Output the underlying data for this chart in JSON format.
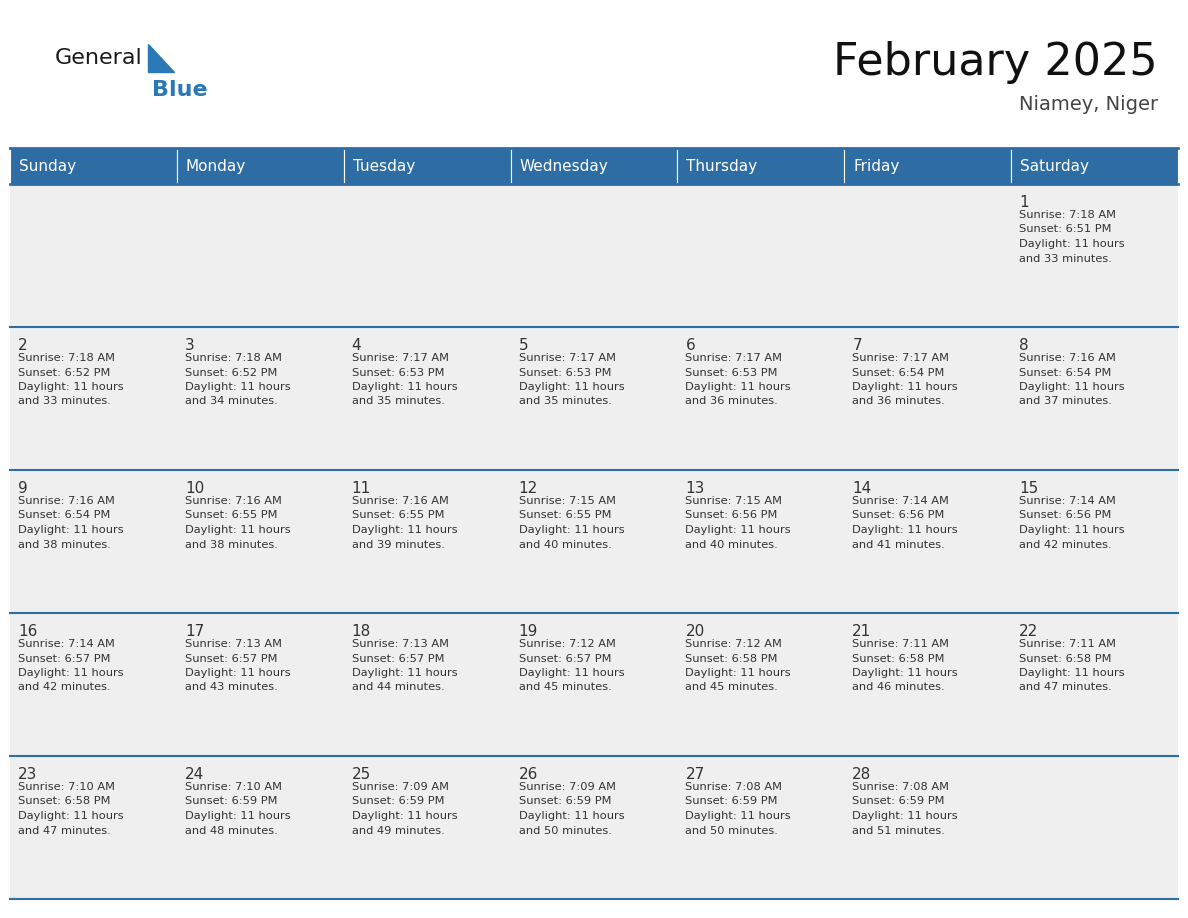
{
  "title": "February 2025",
  "subtitle": "Niamey, Niger",
  "header_color": "#2E6DA4",
  "header_text_color": "#FFFFFF",
  "cell_bg": "#EFEFEF",
  "text_color": "#333333",
  "days_of_week": [
    "Sunday",
    "Monday",
    "Tuesday",
    "Wednesday",
    "Thursday",
    "Friday",
    "Saturday"
  ],
  "calendar_data": [
    [
      null,
      null,
      null,
      null,
      null,
      null,
      1
    ],
    [
      2,
      3,
      4,
      5,
      6,
      7,
      8
    ],
    [
      9,
      10,
      11,
      12,
      13,
      14,
      15
    ],
    [
      16,
      17,
      18,
      19,
      20,
      21,
      22
    ],
    [
      23,
      24,
      25,
      26,
      27,
      28,
      null
    ]
  ],
  "sunrise_data": {
    "1": "7:18 AM",
    "2": "7:18 AM",
    "3": "7:18 AM",
    "4": "7:17 AM",
    "5": "7:17 AM",
    "6": "7:17 AM",
    "7": "7:17 AM",
    "8": "7:16 AM",
    "9": "7:16 AM",
    "10": "7:16 AM",
    "11": "7:16 AM",
    "12": "7:15 AM",
    "13": "7:15 AM",
    "14": "7:14 AM",
    "15": "7:14 AM",
    "16": "7:14 AM",
    "17": "7:13 AM",
    "18": "7:13 AM",
    "19": "7:12 AM",
    "20": "7:12 AM",
    "21": "7:11 AM",
    "22": "7:11 AM",
    "23": "7:10 AM",
    "24": "7:10 AM",
    "25": "7:09 AM",
    "26": "7:09 AM",
    "27": "7:08 AM",
    "28": "7:08 AM"
  },
  "sunset_data": {
    "1": "6:51 PM",
    "2": "6:52 PM",
    "3": "6:52 PM",
    "4": "6:53 PM",
    "5": "6:53 PM",
    "6": "6:53 PM",
    "7": "6:54 PM",
    "8": "6:54 PM",
    "9": "6:54 PM",
    "10": "6:55 PM",
    "11": "6:55 PM",
    "12": "6:55 PM",
    "13": "6:56 PM",
    "14": "6:56 PM",
    "15": "6:56 PM",
    "16": "6:57 PM",
    "17": "6:57 PM",
    "18": "6:57 PM",
    "19": "6:57 PM",
    "20": "6:58 PM",
    "21": "6:58 PM",
    "22": "6:58 PM",
    "23": "6:58 PM",
    "24": "6:59 PM",
    "25": "6:59 PM",
    "26": "6:59 PM",
    "27": "6:59 PM",
    "28": "6:59 PM"
  },
  "daylight_minutes": {
    "1": "33",
    "2": "33",
    "3": "34",
    "4": "35",
    "5": "35",
    "6": "36",
    "7": "36",
    "8": "37",
    "9": "38",
    "10": "38",
    "11": "39",
    "12": "40",
    "13": "40",
    "14": "41",
    "15": "42",
    "16": "42",
    "17": "43",
    "18": "44",
    "19": "45",
    "20": "45",
    "21": "46",
    "22": "47",
    "23": "47",
    "24": "48",
    "25": "49",
    "26": "50",
    "27": "50",
    "28": "51"
  },
  "logo_general_color": "#1a1a1a",
  "logo_blue_color": "#2979B8",
  "logo_triangle_color": "#2979B8",
  "line_color": "#2E6DA4",
  "fig_width": 11.88,
  "fig_height": 9.18,
  "dpi": 100
}
